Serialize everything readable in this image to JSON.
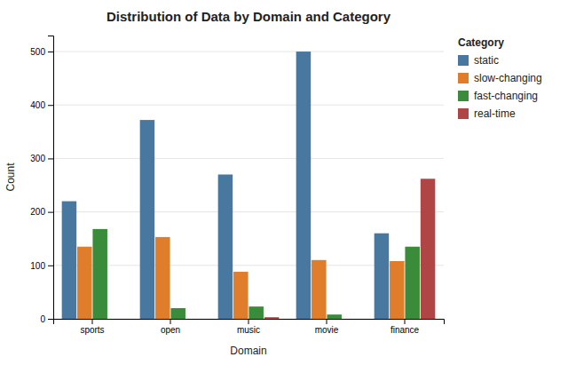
{
  "chart_data": {
    "type": "bar",
    "title": "Distribution of Data by Domain and Category",
    "x_label": "Domain",
    "y_label": "Count",
    "categories": [
      "sports",
      "open",
      "music",
      "movie",
      "finance"
    ],
    "series": [
      {
        "name": "static",
        "color": "#4878a0",
        "values": [
          220,
          372,
          270,
          500,
          160
        ]
      },
      {
        "name": "slow-changing",
        "color": "#e07d2a",
        "values": [
          135,
          153,
          88,
          110,
          108
        ]
      },
      {
        "name": "fast-changing",
        "color": "#3a8c3a",
        "values": [
          168,
          20,
          23,
          8,
          135
        ]
      },
      {
        "name": "real-time",
        "color": "#b04545",
        "values": [
          0,
          0,
          3,
          0,
          262
        ]
      }
    ],
    "ylim": [
      0,
      530
    ],
    "yticks": [
      0,
      100,
      200,
      300,
      400,
      500
    ],
    "grid": true,
    "legend": "upper right",
    "legend_title": "Category"
  }
}
